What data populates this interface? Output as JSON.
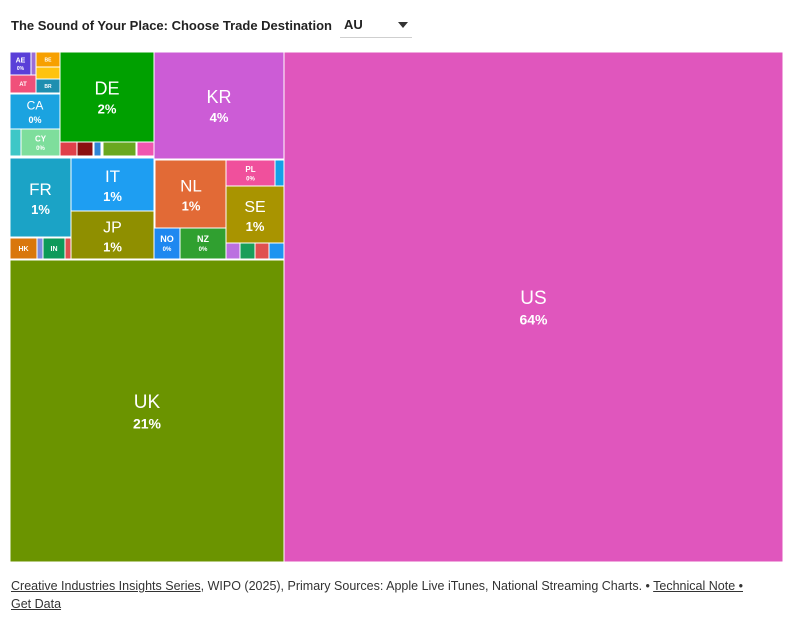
{
  "header": {
    "title": "The Sound of Your Place: Choose Trade Destination",
    "selected": "AU"
  },
  "footer": {
    "series_link": "Creative Industries Insights Series",
    "sources": ", WIPO (2025), Primary Sources: Apple Live iTunes, National Streaming Charts. • ",
    "tech_note": "Technical Note •",
    "get_data": "Get Data"
  },
  "chart_data": {
    "type": "treemap",
    "title": "",
    "items": [
      {
        "label": "US",
        "value_label": "64%",
        "color": "#e056bd"
      },
      {
        "label": "UK",
        "value_label": "21%",
        "color": "#6b9400"
      },
      {
        "label": "KR",
        "value_label": "4%",
        "color": "#cc5cd6"
      },
      {
        "label": "DE",
        "value_label": "2%",
        "color": "#00a000"
      },
      {
        "label": "FR",
        "value_label": "1%",
        "color": "#1ba3c6"
      },
      {
        "label": "IT",
        "value_label": "1%",
        "color": "#1e9ef2"
      },
      {
        "label": "NL",
        "value_label": "1%",
        "color": "#e26a36"
      },
      {
        "label": "JP",
        "value_label": "1%",
        "color": "#8f8f00"
      },
      {
        "label": "SE",
        "value_label": "1%",
        "color": "#a99400"
      },
      {
        "label": "CA",
        "value_label": "0%",
        "color": "#1ba3e0"
      },
      {
        "label": "CY",
        "value_label": "0%",
        "color": "#7ede9c"
      },
      {
        "label": "NO",
        "value_label": "0%",
        "color": "#1e88f0"
      },
      {
        "label": "NZ",
        "value_label": "0%",
        "color": "#30a030"
      },
      {
        "label": "PL",
        "value_label": "0%",
        "color": "#f0509c"
      },
      {
        "label": "AE",
        "value_label": "0%",
        "color": "#5a3fd8"
      },
      {
        "label": "BE",
        "value_label": "",
        "color": "#f7a000"
      },
      {
        "label": "AT",
        "value_label": "",
        "color": "#f0507a"
      },
      {
        "label": "BR",
        "value_label": "",
        "color": "#1e8fb0"
      },
      {
        "label": "HK",
        "value_label": "",
        "color": "#d9770c"
      },
      {
        "label": "IN",
        "value_label": "",
        "color": "#0d9a5a"
      },
      {
        "label": "",
        "value_label": "",
        "color": "#9b6dd6"
      },
      {
        "label": "",
        "value_label": "",
        "color": "#ffc30f"
      },
      {
        "label": "",
        "value_label": "",
        "color": "#3ec7c7"
      },
      {
        "label": "",
        "value_label": "",
        "color": "#e0404a"
      },
      {
        "label": "",
        "value_label": "",
        "color": "#8b1010"
      },
      {
        "label": "",
        "value_label": "",
        "color": "#2f85d6"
      },
      {
        "label": "",
        "value_label": "",
        "color": "#6aa820"
      },
      {
        "label": "",
        "value_label": "",
        "color": "#f056b0"
      },
      {
        "label": "",
        "value_label": "",
        "color": "#14a0e8"
      },
      {
        "label": "",
        "value_label": "",
        "color": "#bb70e0"
      },
      {
        "label": "",
        "value_label": "",
        "color": "#1a9e5a"
      },
      {
        "label": "",
        "value_label": "",
        "color": "#e05050"
      },
      {
        "label": "",
        "value_label": "",
        "color": "#1e94f0"
      },
      {
        "label": "",
        "value_label": "",
        "color": "#7c8ce0"
      },
      {
        "label": "",
        "value_label": "",
        "color": "#e05050"
      }
    ]
  }
}
